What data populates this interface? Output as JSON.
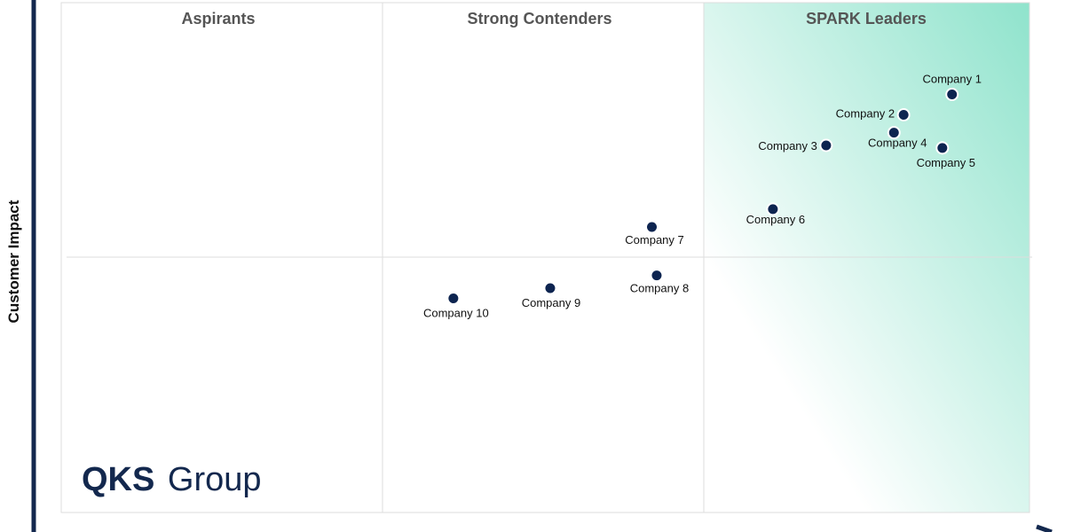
{
  "chart_data": {
    "type": "scatter",
    "ylabel": "Customer Impact",
    "xlabel": "",
    "quadrant_titles": [
      "Aspirants",
      "Strong Contenders",
      "SPARK Leaders"
    ],
    "points": [
      {
        "label": "Company 1",
        "x": 0.92,
        "y": 0.82
      },
      {
        "label": "Company 2",
        "x": 0.87,
        "y": 0.78
      },
      {
        "label": "Company 3",
        "x": 0.79,
        "y": 0.72
      },
      {
        "label": "Company 4",
        "x": 0.86,
        "y": 0.745
      },
      {
        "label": "Company 5",
        "x": 0.91,
        "y": 0.715
      },
      {
        "label": "Company 6",
        "x": 0.735,
        "y": 0.595
      },
      {
        "label": "Company 7",
        "x": 0.61,
        "y": 0.56
      },
      {
        "label": "Company 8",
        "x": 0.615,
        "y": 0.465
      },
      {
        "label": "Company 9",
        "x": 0.505,
        "y": 0.44
      },
      {
        "label": "Company 10",
        "x": 0.405,
        "y": 0.42
      }
    ],
    "legend": "none",
    "grid": true,
    "colors": {
      "point": "#0d2450",
      "axis": "#13284e",
      "quadrant_title": "#555555",
      "leader_gradient": "#8fe3cc",
      "grid": "#dddddd"
    }
  },
  "logo": {
    "bold": "QKS",
    "light": "Group",
    "color": "#13284e"
  }
}
